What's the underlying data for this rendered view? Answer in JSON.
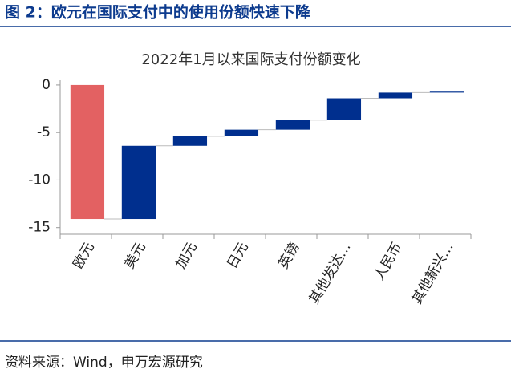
{
  "header": {
    "title": "图 2：欧元在国际支付中的使用份额快速下降"
  },
  "chart_data": {
    "type": "waterfall",
    "title": "2022年1月以来国际支付份额变化",
    "categories": [
      "欧元",
      "美元",
      "加元",
      "日元",
      "英镑",
      "其他发达…",
      "人民币",
      "其他新兴…"
    ],
    "values": [
      -14.1,
      7.7,
      1.0,
      0.7,
      1.0,
      2.3,
      0.6,
      0.1
    ],
    "decrease_color": "#e36162",
    "increase_color": "#002f8e",
    "ylim": [
      -15.7,
      0.5
    ],
    "yticks": [
      0,
      -5,
      -10,
      -15
    ]
  },
  "footer": {
    "source": "资料来源：Wind，申万宏源研究"
  }
}
